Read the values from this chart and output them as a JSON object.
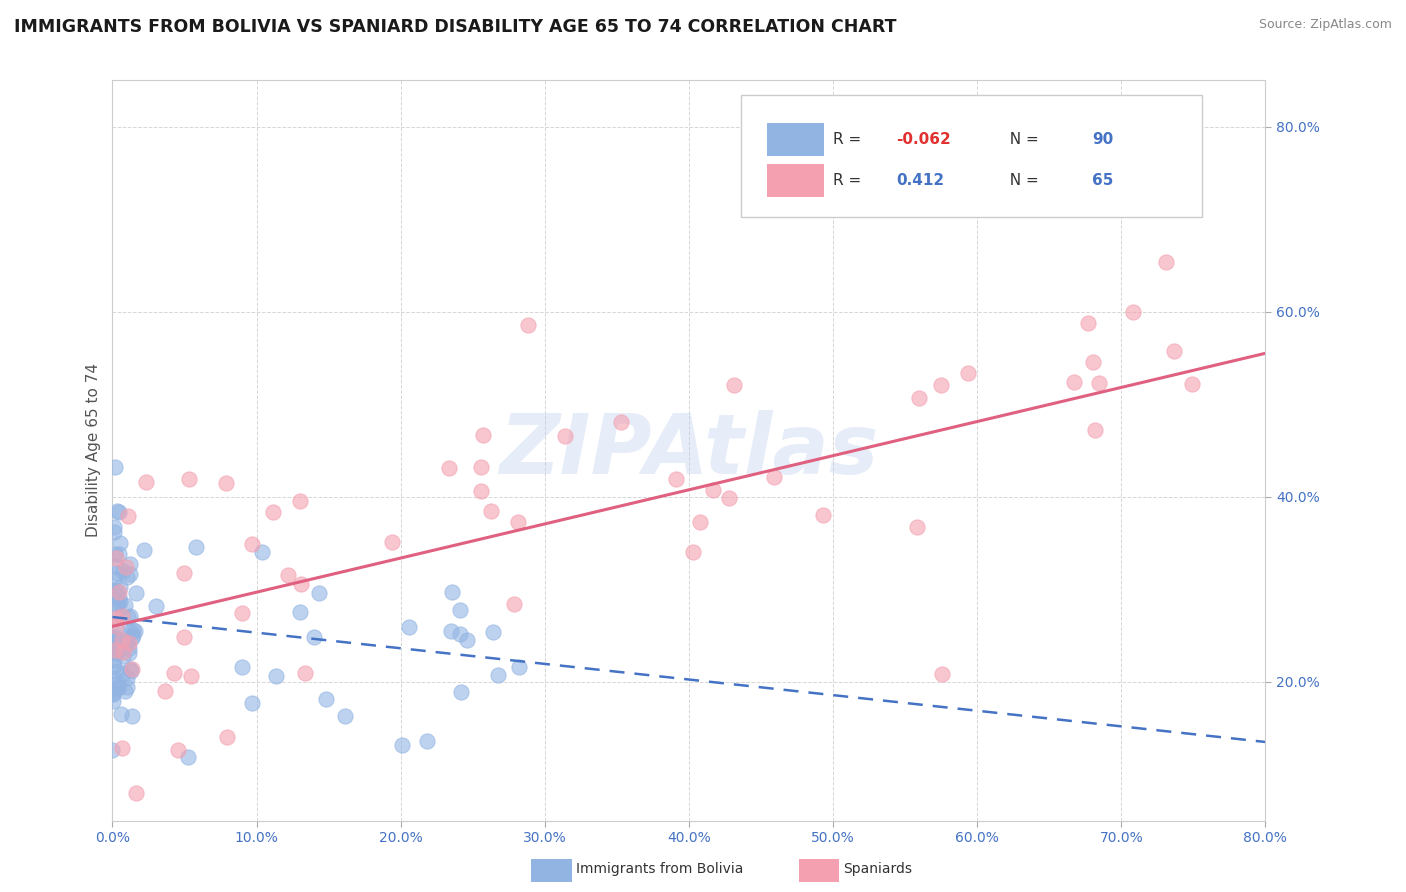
{
  "title": "IMMIGRANTS FROM BOLIVIA VS SPANIARD DISABILITY AGE 65 TO 74 CORRELATION CHART",
  "source": "Source: ZipAtlas.com",
  "ylabel": "Disability Age 65 to 74",
  "watermark": "ZIPAtlas",
  "x_min": 0.0,
  "x_max": 0.8,
  "y_min": 0.05,
  "y_max": 0.85,
  "bolivia_R": -0.062,
  "bolivia_N": 90,
  "spaniard_R": 0.412,
  "spaniard_N": 65,
  "bolivia_color": "#92b4e3",
  "spaniard_color": "#f4a0b0",
  "bolivia_line_color": "#4472c4",
  "spaniard_line_color": "#e06080",
  "legend_blue_color": "#4472c4",
  "legend_red_color": "#e03030",
  "background_color": "#ffffff",
  "grid_color": "#cccccc",
  "axis_tick_color": "#4472c4",
  "ylabel_color": "#555555",
  "title_color": "#1a1a1a",
  "source_color": "#888888",
  "ytick_positions": [
    0.2,
    0.4,
    0.6,
    0.8
  ],
  "xtick_positions": [
    0.0,
    0.1,
    0.2,
    0.3,
    0.4,
    0.5,
    0.6,
    0.7,
    0.8
  ],
  "bolivia_line_y_start": 0.27,
  "bolivia_line_y_end": 0.135,
  "spaniard_line_y_start": 0.26,
  "spaniard_line_y_end": 0.555
}
